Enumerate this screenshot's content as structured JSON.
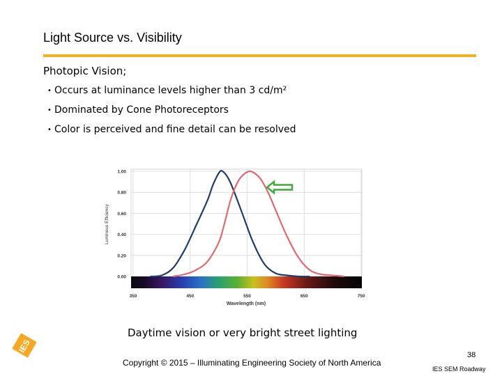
{
  "slide": {
    "title": "Light Source vs. Visibility",
    "subhead": "Photopic Vision;",
    "bullets": [
      "Occurs at luminance levels higher than 3 cd/m²",
      "Dominated by Cone Photoreceptors",
      "Color is perceived and fine detail can be resolved"
    ],
    "caption": "Daytime vision or very bright street lighting",
    "copyright": "Copyright © 2015 – Illuminating Engineering Society of North America",
    "page_number": "38",
    "footer_label": "IES SEM Roadway",
    "logo_text": "IES",
    "colors": {
      "accent": "#F2B01E",
      "logo": "#F7A823",
      "scotopic": "#1F3C6E",
      "photopic": "#E0696E",
      "arrow": "#3DAA3A"
    }
  },
  "chart_data": {
    "type": "line",
    "xlabel": "Wavelength (nm)",
    "ylabel": "Luminous Efficiency",
    "xlim": [
      350,
      750
    ],
    "ylim": [
      0,
      1
    ],
    "x_ticks": [
      "350",
      "450",
      "550",
      "650",
      "750"
    ],
    "y_ticks": [
      "0.00",
      "0.20",
      "0.40",
      "0.60",
      "0.80",
      "1.00"
    ],
    "grid": true,
    "series": [
      {
        "color": "#1F3C6E",
        "x": [
          380,
          400,
          420,
          440,
          460,
          480,
          490,
          500,
          507,
          520,
          540,
          560,
          580,
          600,
          620,
          640,
          660
        ],
        "y": [
          0.0,
          0.01,
          0.08,
          0.25,
          0.48,
          0.72,
          0.87,
          0.98,
          1.0,
          0.9,
          0.62,
          0.33,
          0.12,
          0.03,
          0.01,
          0.0,
          0.0
        ]
      },
      {
        "color": "#E0696E",
        "x": [
          420,
          440,
          460,
          480,
          500,
          510,
          520,
          530,
          540,
          555,
          570,
          580,
          590,
          600,
          620,
          640,
          660,
          680,
          700,
          720
        ],
        "y": [
          0.0,
          0.02,
          0.06,
          0.14,
          0.32,
          0.5,
          0.71,
          0.86,
          0.95,
          1.0,
          0.95,
          0.87,
          0.76,
          0.63,
          0.38,
          0.18,
          0.06,
          0.02,
          0.01,
          0.0
        ]
      }
    ]
  }
}
